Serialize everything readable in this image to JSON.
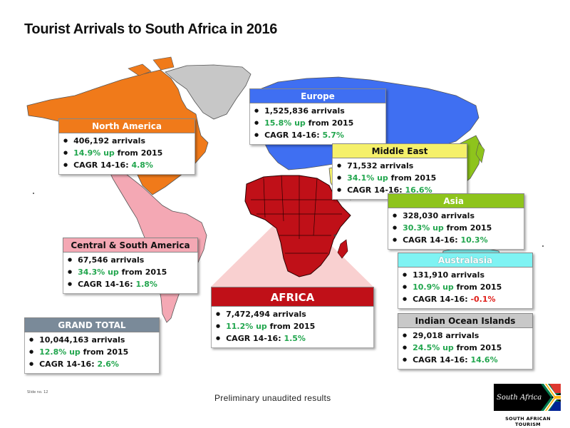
{
  "title": "Tourist Arrivals to South Africa in 2016",
  "colors": {
    "north_america": "#f07a1a",
    "europe": "#3f6ff2",
    "middle_east": "#f5f06a",
    "asia": "#8ec41c",
    "australasia": "#7ff3f3",
    "central_south_america": "#f4a8b4",
    "africa": "#c01018",
    "grand_total": "#7a8a99",
    "indian_ocean": "#c8c8c8",
    "unlisted": "#c7c7c7",
    "growth_green": "#22a64e",
    "decline_red": "#e0201b"
  },
  "regions": {
    "north_america": {
      "name": "North America",
      "arrivals": "406,192 arrivals",
      "growth": "14.9% up",
      "growth_suffix": " from 2015",
      "cagr_label": "CAGR 14-16: ",
      "cagr": "4.8%"
    },
    "europe": {
      "name": "Europe",
      "arrivals": "1,525,836 arrivals",
      "growth": "15.8% up",
      "growth_suffix": " from 2015",
      "cagr_label": "CAGR 14-16: ",
      "cagr": "5.7%"
    },
    "middle_east": {
      "name": "Middle East",
      "arrivals": "71,532 arrivals",
      "growth": "34.1% up",
      "growth_suffix": " from 2015",
      "cagr_label": "CAGR 14-16: ",
      "cagr": "16.6%"
    },
    "asia": {
      "name": "Asia",
      "arrivals": "328,030 arrivals",
      "growth": "30.3% up",
      "growth_suffix": " from 2015",
      "cagr_label": "CAGR 14-16: ",
      "cagr": "10.3%"
    },
    "central_south_america": {
      "name": "Central & South America",
      "arrivals": "67,546 arrivals",
      "growth": "34.3% up",
      "growth_suffix": " from 2015",
      "cagr_label": "CAGR 14-16: ",
      "cagr": "1.8%"
    },
    "australasia": {
      "name": "Australasia",
      "arrivals": "131,910 arrivals",
      "growth": "10.9% up",
      "growth_suffix": " from 2015",
      "cagr_label": "CAGR 14-16: ",
      "cagr": "-0.1%"
    },
    "africa": {
      "name": "AFRICA",
      "arrivals": "7,472,494 arrivals",
      "growth": "11.2% up",
      "growth_suffix": " from 2015",
      "cagr_label": "CAGR 14-16: ",
      "cagr": "1.5%"
    },
    "grand_total": {
      "name": "GRAND TOTAL",
      "arrivals": "10,044,163 arrivals",
      "growth": "12.8% up",
      "growth_suffix": " from 2015",
      "cagr_label": "CAGR 14-16: ",
      "cagr": "2.6%"
    },
    "indian_ocean": {
      "name": "Indian Ocean Islands",
      "arrivals": "29,018 arrivals",
      "growth": "24.5% up",
      "growth_suffix": " from 2015",
      "cagr_label": "CAGR 14-16: ",
      "cagr": "14.6%"
    }
  },
  "footer_note": "Preliminary unaudited results",
  "slide_number": "Slide no. 12",
  "logo": {
    "wordmark": "South Africa",
    "caption": "SOUTH AFRICAN TOURISM"
  }
}
